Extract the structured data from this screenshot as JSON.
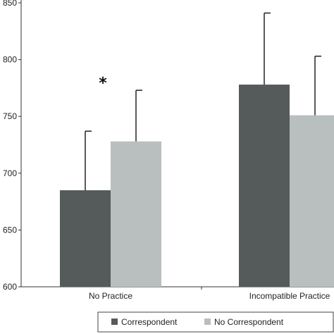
{
  "chart_data": {
    "type": "bar",
    "categories": [
      "No Practice",
      "Incompatible Practice"
    ],
    "series": [
      {
        "name": "Correspondent",
        "values": [
          685,
          778
        ],
        "error_upper": [
          737,
          841
        ],
        "color": "#555b5b"
      },
      {
        "name": "No Correspondent",
        "values": [
          728,
          751
        ],
        "error_upper": [
          773,
          803
        ],
        "color": "#b8bfbe"
      }
    ],
    "title": "",
    "xlabel": "",
    "ylabel": "",
    "ylim": [
      600,
      850
    ],
    "yticks": [
      600,
      650,
      700,
      750,
      800,
      850
    ],
    "grid": false,
    "legend": "bottom",
    "annotations": [
      {
        "text": "*",
        "category": "No Practice"
      }
    ]
  }
}
